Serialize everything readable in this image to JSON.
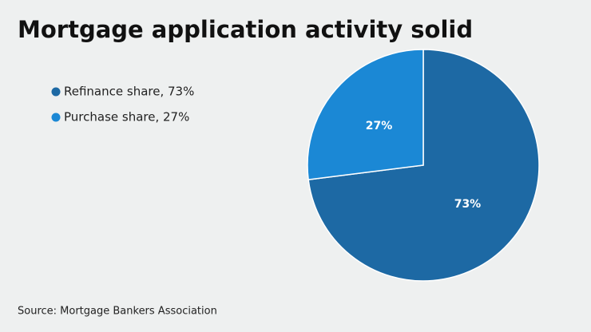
{
  "chart_data": {
    "type": "pie",
    "title": "Mortgage application activity solid",
    "categories": [
      "Refinance share, 73%",
      "Purchase share, 27%"
    ],
    "values": [
      73,
      27
    ],
    "value_labels": [
      "73%",
      "27%"
    ],
    "colors": [
      "#1d69a4",
      "#1b88d5"
    ],
    "source": "Source: Mortgage Bankers Association"
  }
}
